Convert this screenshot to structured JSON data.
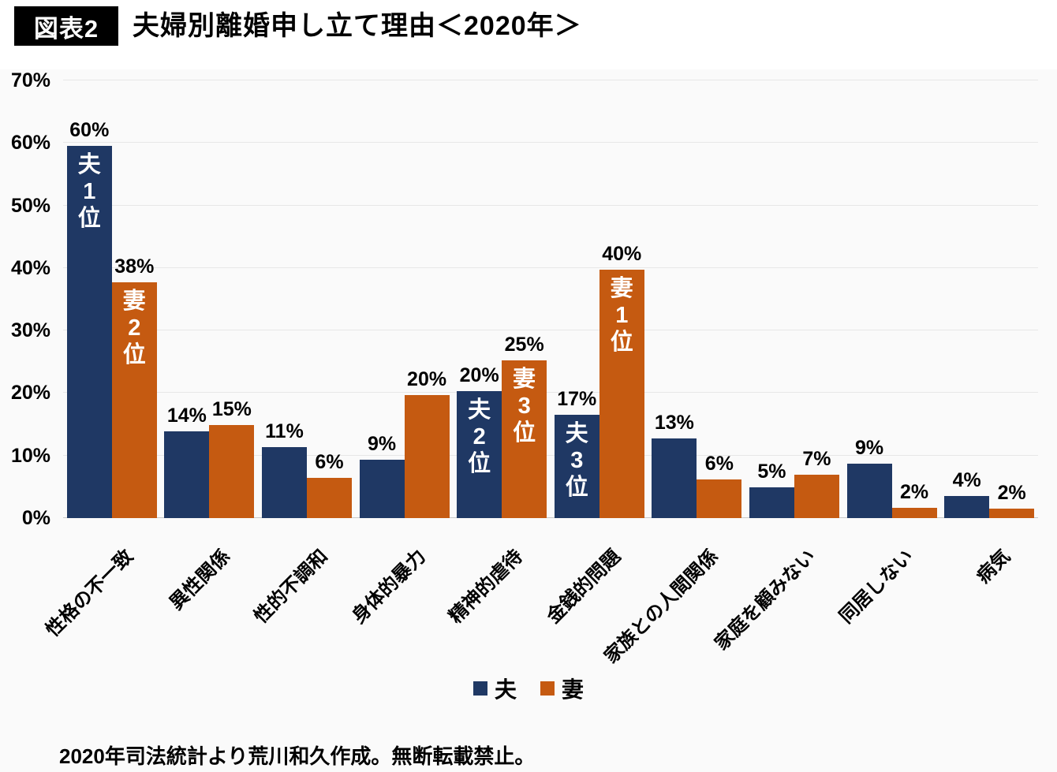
{
  "header": {
    "badge": "図表2",
    "title": "夫婦別離婚申し立て理由＜2020年＞"
  },
  "colors": {
    "husband": "#1f3864",
    "wife": "#c55a11",
    "badge_bg": "#000000",
    "panel_bg": "#fafafa",
    "gridline": "#e7e7e7",
    "baseline": "#c9c9c9",
    "annotation_text": "#ffffff"
  },
  "chart_data": {
    "type": "bar",
    "title": "夫婦別離婚申し立て理由＜2020年＞",
    "xlabel": "",
    "ylabel": "",
    "ylim": [
      0,
      70
    ],
    "grid": true,
    "legend_position": "bottom",
    "yticks": [
      {
        "value": 0,
        "label": "0%"
      },
      {
        "value": 10,
        "label": "10%"
      },
      {
        "value": 20,
        "label": "20%"
      },
      {
        "value": 30,
        "label": "30%"
      },
      {
        "value": 40,
        "label": "40%"
      },
      {
        "value": 50,
        "label": "50%"
      },
      {
        "value": 60,
        "label": "60%"
      },
      {
        "value": 70,
        "label": "70%"
      }
    ],
    "categories": [
      "性格の不一致",
      "異性関係",
      "性的不調和",
      "身体的暴力",
      "精神的虐待",
      "金銭的問題",
      "家族との人間関係",
      "家庭を顧みない",
      "同居しない",
      "病気"
    ],
    "series": [
      {
        "key": "husband",
        "name": "夫",
        "color": "#1f3864",
        "values": [
          59.6,
          13.9,
          11.3,
          9.3,
          20.3,
          16.5,
          12.7,
          4.9,
          8.7,
          3.6
        ],
        "labels": [
          "60%",
          "14%",
          "11%",
          "9%",
          "20%",
          "17%",
          "13%",
          "5%",
          "9%",
          "4%"
        ],
        "annotations": [
          "夫1位",
          null,
          null,
          null,
          "夫2位",
          "夫3位",
          null,
          null,
          null,
          null
        ]
      },
      {
        "key": "wife",
        "name": "妻",
        "color": "#c55a11",
        "values": [
          37.7,
          14.9,
          6.5,
          19.7,
          25.2,
          39.7,
          6.2,
          6.9,
          1.7,
          1.5
        ],
        "labels": [
          "38%",
          "15%",
          "6%",
          "20%",
          "25%",
          "40%",
          "6%",
          "7%",
          "2%",
          "2%"
        ],
        "annotations": [
          "妻2位",
          null,
          null,
          null,
          "妻3位",
          "妻1位",
          null,
          null,
          null,
          null
        ]
      }
    ]
  },
  "legend": {
    "items": [
      {
        "label": "夫",
        "color": "#1f3864"
      },
      {
        "label": "妻",
        "color": "#c55a11"
      }
    ]
  },
  "footer": {
    "source": "2020年司法統計より荒川和久作成。無断転載禁止。"
  }
}
